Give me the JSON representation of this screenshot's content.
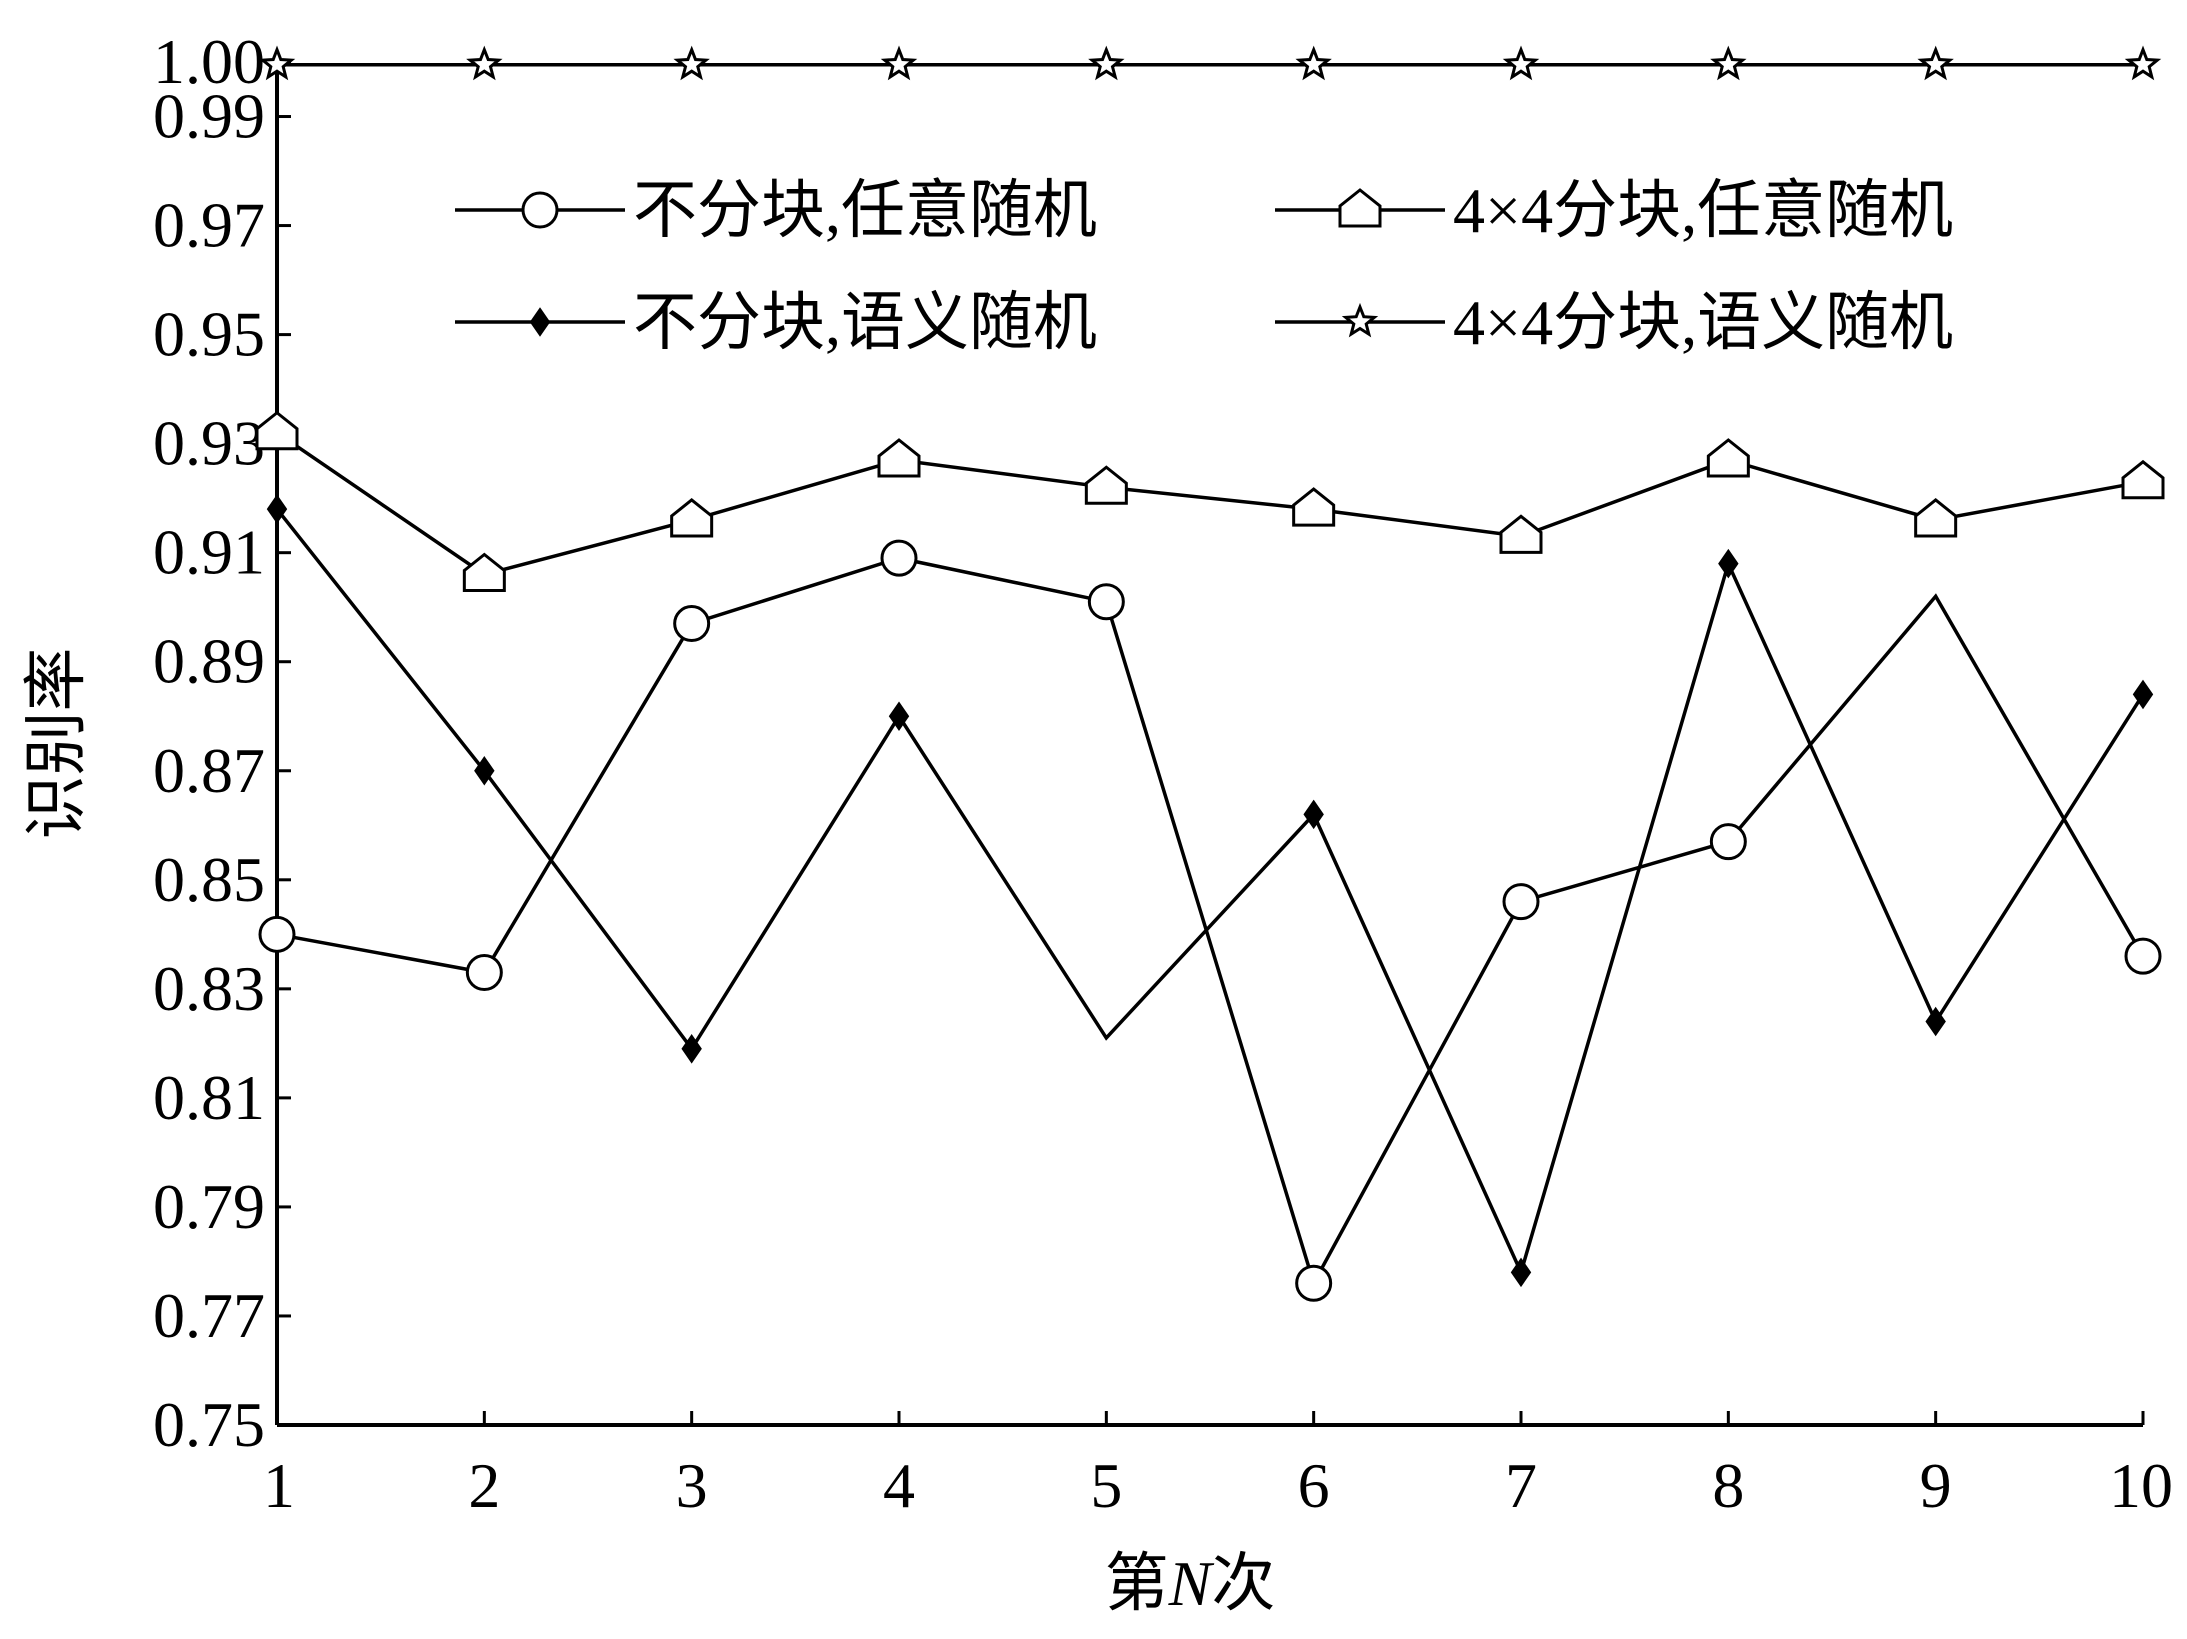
{
  "chart_data": {
    "type": "line",
    "title": "",
    "xlabel_parts": [
      "第",
      "N",
      "次"
    ],
    "ylabel": "识别率",
    "x": [
      1,
      2,
      3,
      4,
      5,
      6,
      7,
      8,
      9,
      10
    ],
    "xlim": [
      1,
      10
    ],
    "ylim": [
      0.75,
      1.0
    ],
    "yticks": [
      "0.75",
      "0.77",
      "0.79",
      "0.81",
      "0.83",
      "0.85",
      "0.87",
      "0.89",
      "0.91",
      "0.93",
      "0.95",
      "0.97",
      "0.99",
      "1.00"
    ],
    "grid": false,
    "legend_position": "top-right",
    "series": [
      {
        "name": "不分块,任意随机",
        "marker": "circle",
        "values": [
          0.84,
          0.833,
          0.897,
          0.909,
          0.901,
          0.776,
          0.846,
          0.857,
          0.902,
          0.836
        ],
        "hidden_marker_index": 8
      },
      {
        "name": "4×4分块,任意随机",
        "marker": "pentagon",
        "values": [
          0.932,
          0.906,
          0.916,
          0.927,
          0.922,
          0.918,
          0.913,
          0.927,
          0.916,
          0.923
        ]
      },
      {
        "name": "不分块,语义随机",
        "marker": "diamond",
        "values": [
          0.918,
          0.87,
          0.819,
          0.88,
          0.821,
          0.862,
          0.778,
          0.908,
          0.824,
          0.884
        ],
        "hidden_marker_index": 4
      },
      {
        "name": "4×4分块,语义随机",
        "marker": "star",
        "values": [
          0.9995,
          0.9995,
          0.9995,
          0.9995,
          0.9995,
          0.9995,
          0.9995,
          0.9995,
          0.9995,
          0.9995
        ]
      }
    ]
  }
}
